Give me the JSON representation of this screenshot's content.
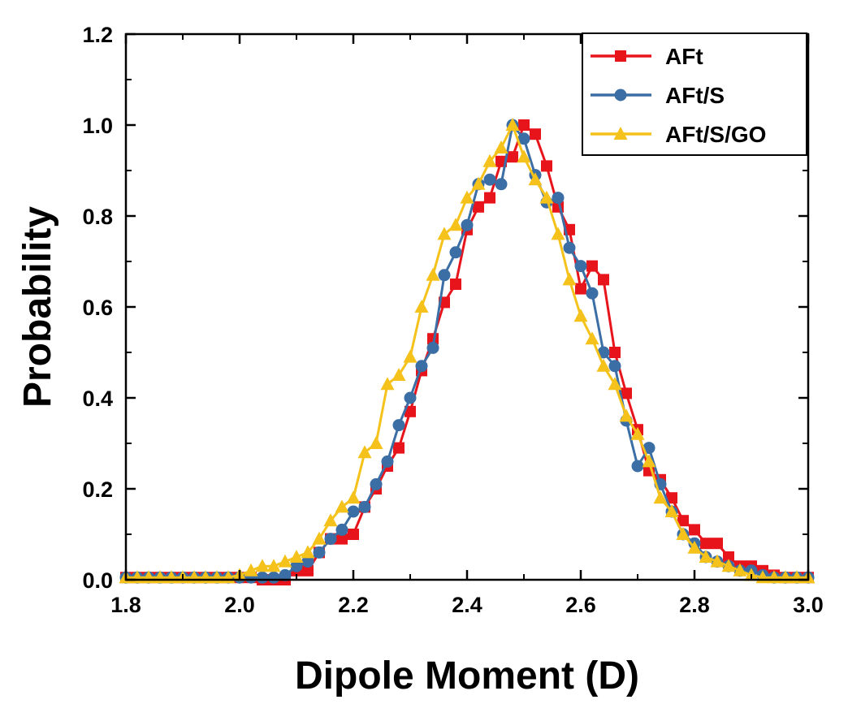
{
  "chart_data": {
    "type": "line",
    "title": "",
    "xlabel": "Dipole Moment (D)",
    "ylabel": "Probability",
    "xlim": [
      1.8,
      3.0
    ],
    "ylim": [
      0.0,
      1.2
    ],
    "x_ticks": [
      "1.8",
      "2.0",
      "2.2",
      "2.4",
      "2.6",
      "2.8",
      "3.0"
    ],
    "y_ticks": [
      "0.0",
      "0.2",
      "0.4",
      "0.6",
      "0.8",
      "1.0",
      "1.2"
    ],
    "legend_position": "top-right",
    "series": [
      {
        "name": "AFt",
        "color": "#e8141c",
        "marker": "square",
        "x": [
          1.8,
          1.82,
          1.84,
          1.86,
          1.88,
          1.9,
          1.92,
          1.94,
          1.96,
          1.98,
          2.0,
          2.02,
          2.04,
          2.06,
          2.08,
          2.1,
          2.12,
          2.14,
          2.16,
          2.18,
          2.2,
          2.22,
          2.24,
          2.26,
          2.28,
          2.3,
          2.32,
          2.34,
          2.36,
          2.38,
          2.4,
          2.42,
          2.44,
          2.46,
          2.48,
          2.5,
          2.52,
          2.54,
          2.56,
          2.58,
          2.6,
          2.62,
          2.64,
          2.66,
          2.68,
          2.7,
          2.72,
          2.74,
          2.76,
          2.78,
          2.8,
          2.82,
          2.84,
          2.86,
          2.88,
          2.9,
          2.92,
          2.94,
          2.96,
          2.98,
          3.0
        ],
        "y": [
          0.005,
          0.005,
          0.005,
          0.005,
          0.005,
          0.005,
          0.005,
          0.005,
          0.005,
          0.005,
          0.005,
          0.005,
          0.0,
          0.0,
          0.0,
          0.02,
          0.02,
          0.06,
          0.09,
          0.09,
          0.1,
          0.16,
          0.2,
          0.25,
          0.29,
          0.37,
          0.46,
          0.53,
          0.61,
          0.65,
          0.77,
          0.82,
          0.84,
          0.92,
          0.93,
          1.0,
          0.98,
          0.91,
          0.82,
          0.77,
          0.64,
          0.69,
          0.66,
          0.5,
          0.41,
          0.33,
          0.24,
          0.22,
          0.18,
          0.13,
          0.11,
          0.08,
          0.08,
          0.05,
          0.03,
          0.03,
          0.02,
          0.01,
          0.005,
          0.005,
          0.005
        ]
      },
      {
        "name": "AFt/S",
        "color": "#3b6ea5",
        "marker": "circle",
        "x": [
          1.8,
          1.82,
          1.84,
          1.86,
          1.88,
          1.9,
          1.92,
          1.94,
          1.96,
          1.98,
          2.0,
          2.02,
          2.04,
          2.06,
          2.08,
          2.1,
          2.12,
          2.14,
          2.16,
          2.18,
          2.2,
          2.22,
          2.24,
          2.26,
          2.28,
          2.3,
          2.32,
          2.34,
          2.36,
          2.38,
          2.4,
          2.42,
          2.44,
          2.46,
          2.48,
          2.5,
          2.52,
          2.54,
          2.56,
          2.58,
          2.6,
          2.62,
          2.64,
          2.66,
          2.68,
          2.7,
          2.72,
          2.74,
          2.76,
          2.78,
          2.8,
          2.82,
          2.84,
          2.86,
          2.88,
          2.9,
          2.92,
          2.94,
          2.96,
          2.98,
          3.0
        ],
        "y": [
          0.005,
          0.005,
          0.005,
          0.005,
          0.005,
          0.005,
          0.005,
          0.005,
          0.005,
          0.005,
          0.005,
          0.005,
          0.005,
          0.005,
          0.01,
          0.03,
          0.04,
          0.06,
          0.09,
          0.11,
          0.15,
          0.16,
          0.21,
          0.26,
          0.34,
          0.4,
          0.47,
          0.51,
          0.67,
          0.72,
          0.78,
          0.87,
          0.88,
          0.87,
          1.0,
          0.97,
          0.89,
          0.83,
          0.84,
          0.73,
          0.69,
          0.63,
          0.5,
          0.47,
          0.35,
          0.25,
          0.29,
          0.21,
          0.15,
          0.1,
          0.08,
          0.05,
          0.04,
          0.03,
          0.02,
          0.02,
          0.01,
          0.005,
          0.005,
          0.005,
          0.005
        ]
      },
      {
        "name": "AFt/S/GO",
        "color": "#f5c21b",
        "marker": "triangle",
        "x": [
          1.8,
          1.82,
          1.84,
          1.86,
          1.88,
          1.9,
          1.92,
          1.94,
          1.96,
          1.98,
          2.0,
          2.02,
          2.04,
          2.06,
          2.08,
          2.1,
          2.12,
          2.14,
          2.16,
          2.18,
          2.2,
          2.22,
          2.24,
          2.26,
          2.28,
          2.3,
          2.32,
          2.34,
          2.36,
          2.38,
          2.4,
          2.42,
          2.44,
          2.46,
          2.48,
          2.5,
          2.52,
          2.54,
          2.56,
          2.58,
          2.6,
          2.62,
          2.64,
          2.66,
          2.68,
          2.7,
          2.72,
          2.74,
          2.76,
          2.78,
          2.8,
          2.82,
          2.84,
          2.86,
          2.88,
          2.9,
          2.92,
          2.94,
          2.96,
          2.98,
          3.0
        ],
        "y": [
          0.005,
          0.005,
          0.005,
          0.005,
          0.005,
          0.005,
          0.005,
          0.005,
          0.005,
          0.005,
          0.01,
          0.02,
          0.03,
          0.03,
          0.04,
          0.05,
          0.06,
          0.09,
          0.13,
          0.16,
          0.18,
          0.28,
          0.3,
          0.43,
          0.45,
          0.49,
          0.6,
          0.67,
          0.76,
          0.78,
          0.84,
          0.87,
          0.92,
          0.95,
          1.0,
          0.93,
          0.88,
          0.84,
          0.76,
          0.66,
          0.58,
          0.53,
          0.47,
          0.43,
          0.36,
          0.32,
          0.26,
          0.18,
          0.15,
          0.1,
          0.07,
          0.05,
          0.04,
          0.03,
          0.02,
          0.01,
          0.005,
          0.005,
          0.005,
          0.005,
          0.005
        ]
      }
    ]
  }
}
